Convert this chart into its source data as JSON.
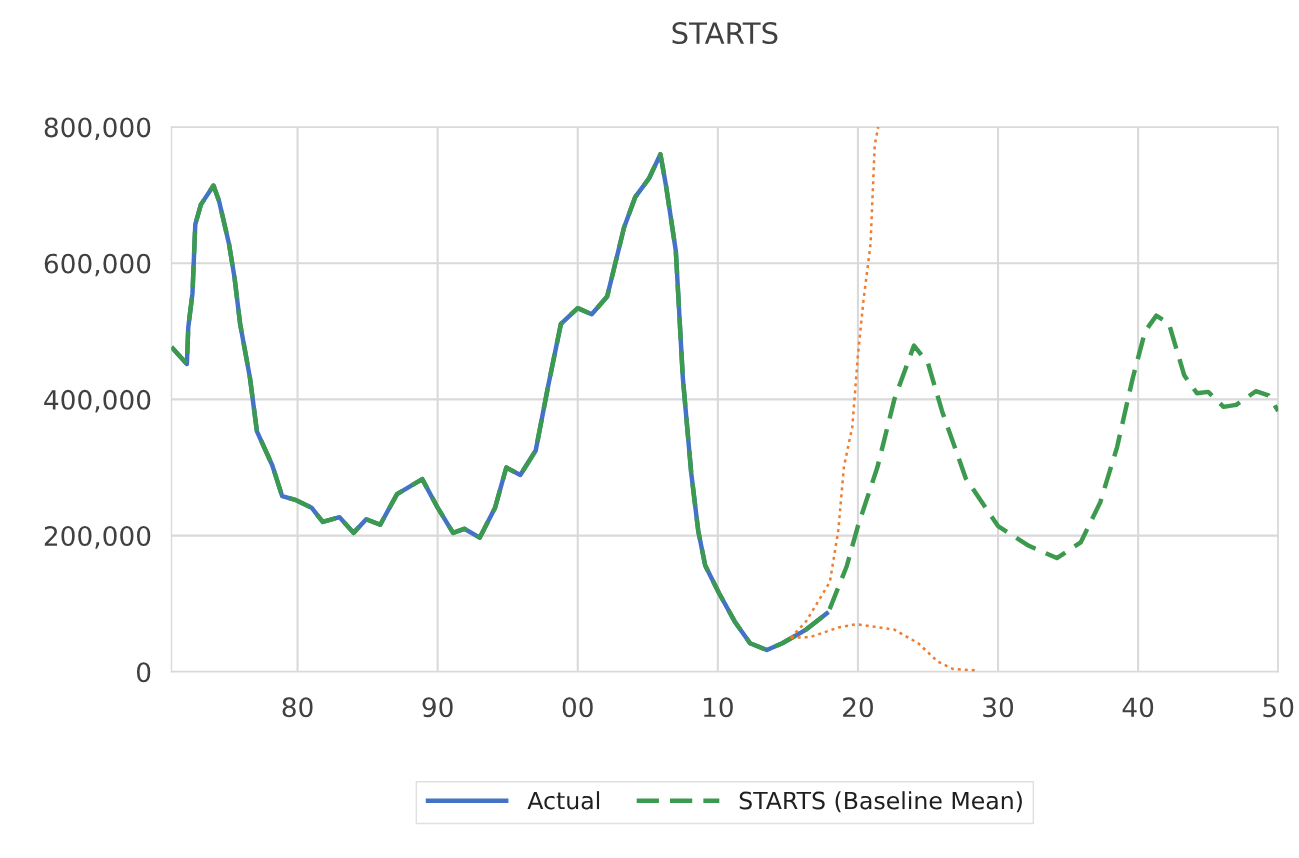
{
  "chart_data": {
    "type": "line",
    "title": "STARTS",
    "xlim": [
      1971,
      2050
    ],
    "xticks": [
      {
        "value": 1980,
        "label": "80"
      },
      {
        "value": 1990,
        "label": "90"
      },
      {
        "value": 2000,
        "label": "00"
      },
      {
        "value": 2010,
        "label": "10"
      },
      {
        "value": 2020,
        "label": "20"
      },
      {
        "value": 2030,
        "label": "30"
      },
      {
        "value": 2040,
        "label": "40"
      },
      {
        "value": 2050,
        "label": "50"
      }
    ],
    "ylim": [
      0,
      800000
    ],
    "yticks": [
      {
        "value": 0,
        "label": "0"
      },
      {
        "value": 200000,
        "label": "200,000"
      },
      {
        "value": 400000,
        "label": "400,000"
      },
      {
        "value": 600000,
        "label": "600,000"
      },
      {
        "value": 800000,
        "label": "800,000"
      }
    ],
    "grid": true,
    "legend": "bottom",
    "marker": "none",
    "series": [
      {
        "name": "Actual",
        "color": "#4472c4",
        "line_style": "solid",
        "x": [
          1971.0,
          1972.1,
          1972.2,
          1972.5,
          1972.7,
          1973.1,
          1974.0,
          1974.4,
          1975.1,
          1975.5,
          1975.9,
          1976.6,
          1977.1,
          1978.2,
          1978.9,
          1979.9,
          1981.0,
          1981.8,
          1983.0,
          1984.0,
          1984.9,
          1985.9,
          1987.1,
          1988.9,
          1990.0,
          1991.1,
          1991.9,
          1993.0,
          1994.1,
          1994.9,
          1995.9,
          1997.0,
          1997.9,
          1998.8,
          2000.0,
          2001.0,
          2002.1,
          2003.3,
          2004.1,
          2005.1,
          2005.9,
          2006.3,
          2007.0,
          2007.5,
          2008.1,
          2008.6,
          2009.1,
          2010.1,
          2011.2,
          2012.3,
          2013.5,
          2014.6,
          2016.3,
          2017.9
        ],
        "values": [
          477000,
          452000,
          506000,
          556000,
          657000,
          686000,
          714000,
          691000,
          629000,
          579000,
          511000,
          432000,
          353000,
          303000,
          258000,
          252000,
          241000,
          220000,
          227000,
          204000,
          224000,
          216000,
          261000,
          283000,
          241000,
          204000,
          210000,
          197000,
          241000,
          300000,
          289000,
          325000,
          421000,
          511000,
          534000,
          525000,
          551000,
          652000,
          697000,
          725000,
          760000,
          714000,
          618000,
          432000,
          292000,
          207000,
          156000,
          115000,
          74000,
          42000,
          32000,
          42000,
          62000,
          88000
        ]
      },
      {
        "name": "STARTS (Baseline Mean)",
        "color": "#3c9a4e",
        "line_style": "dashed",
        "x": [
          1971.0,
          1972.1,
          1972.2,
          1972.5,
          1972.7,
          1973.1,
          1974.0,
          1974.4,
          1975.1,
          1975.5,
          1975.9,
          1976.6,
          1977.1,
          1978.2,
          1978.9,
          1979.9,
          1981.0,
          1981.8,
          1983.0,
          1984.0,
          1984.9,
          1985.9,
          1987.1,
          1988.9,
          1990.0,
          1991.1,
          1991.9,
          1993.0,
          1994.1,
          1994.9,
          1995.9,
          1997.0,
          1997.9,
          1998.8,
          2000.0,
          2001.0,
          2002.1,
          2003.3,
          2004.1,
          2005.1,
          2005.9,
          2006.3,
          2007.0,
          2007.5,
          2008.1,
          2008.6,
          2009.1,
          2010.1,
          2011.2,
          2012.3,
          2013.5,
          2014.6,
          2016.3,
          2017.9,
          2019.2,
          2020.0,
          2021.4,
          2022.6,
          2024.0,
          2025.0,
          2026.0,
          2027.7,
          2030.0,
          2032.2,
          2034.2,
          2035.9,
          2037.3,
          2038.5,
          2039.6,
          2040.5,
          2041.3,
          2042.2,
          2043.3,
          2044.2,
          2045.0,
          2046.1,
          2047.0,
          2048.4,
          2049.3,
          2050.0
        ],
        "values": [
          477000,
          452000,
          506000,
          556000,
          657000,
          686000,
          714000,
          691000,
          629000,
          579000,
          511000,
          432000,
          353000,
          303000,
          258000,
          252000,
          241000,
          220000,
          227000,
          204000,
          224000,
          216000,
          261000,
          283000,
          241000,
          204000,
          210000,
          197000,
          241000,
          300000,
          289000,
          325000,
          421000,
          511000,
          534000,
          525000,
          551000,
          652000,
          697000,
          725000,
          760000,
          714000,
          618000,
          432000,
          292000,
          207000,
          156000,
          115000,
          74000,
          42000,
          32000,
          42000,
          62000,
          88000,
          155000,
          214000,
          301000,
          400000,
          479000,
          453000,
          383000,
          284000,
          214000,
          185000,
          167000,
          190000,
          249000,
          330000,
          430000,
          500000,
          523000,
          511000,
          435000,
          409000,
          411000,
          389000,
          392000,
          412000,
          406000,
          383000
        ]
      },
      {
        "color": "#ed7d31",
        "line_style": "dotted",
        "x": [
          2015.2,
          2016.3,
          2018.0,
          2018.6,
          2019.0,
          2019.6,
          2020.0,
          2020.4,
          2020.9,
          2021.2,
          2021.45
        ],
        "values": [
          50000,
          74000,
          132000,
          208000,
          301000,
          360000,
          465000,
          546000,
          628000,
          774000,
          800000
        ]
      },
      {
        "color": "#ed7d31",
        "line_style": "dotted",
        "x": [
          2015.2,
          2016.6,
          2018.6,
          2019.9,
          2022.6,
          2024.3,
          2025.7,
          2026.8,
          2028.5
        ],
        "values": [
          50000,
          51000,
          65000,
          70000,
          62000,
          42000,
          15000,
          4000,
          2000
        ]
      }
    ]
  }
}
